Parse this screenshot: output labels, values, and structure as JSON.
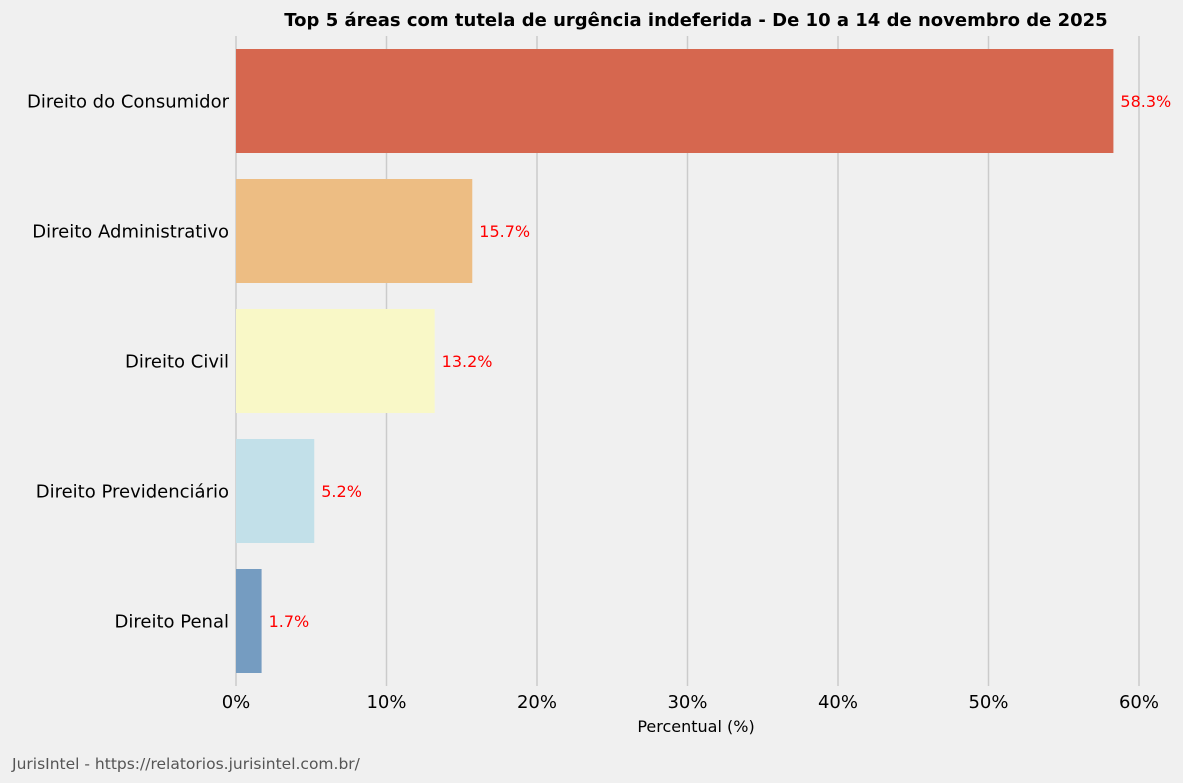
{
  "chart_data": {
    "type": "bar",
    "orientation": "horizontal",
    "title": "Top 5 áreas com tutela de urgência indeferida - De 10 a 14 de novembro de 2025",
    "xlabel": "Percentual (%)",
    "ylabel": "",
    "xlim": [
      0,
      60
    ],
    "xticks": [
      0,
      10,
      20,
      30,
      40,
      50,
      60
    ],
    "xtick_labels": [
      "0%",
      "10%",
      "20%",
      "30%",
      "40%",
      "50%",
      "60%"
    ],
    "grid": "vertical",
    "categories": [
      "Direito do Consumidor",
      "Direito Administrativo",
      "Direito Civil",
      "Direito Previdenciário",
      "Direito Penal"
    ],
    "values": [
      58.3,
      15.7,
      13.2,
      5.2,
      1.7
    ],
    "data_labels": [
      "58.3%",
      "15.7%",
      "13.2%",
      "5.2%",
      "1.7%"
    ],
    "colors": [
      "#d6674f",
      "#edbd83",
      "#f9f8c7",
      "#c2e0e9",
      "#759cc1"
    ],
    "data_label_color": "#ff0000"
  },
  "footer": "JurisIntel - https://relatorios.jurisintel.com.br/"
}
